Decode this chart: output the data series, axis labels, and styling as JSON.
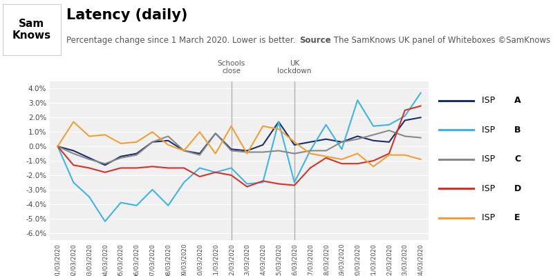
{
  "title": "Latency (daily)",
  "subtitle": "Percentage change since 1 March 2020. Lower is better.",
  "source_label": "Source",
  "source_text": ": The SamKnows UK panel of Whiteboxes ©SamKnows",
  "logo_line1": "Sam",
  "logo_line2": "Knows",
  "dates": [
    "01/03/2020",
    "02/03/2020",
    "03/03/2020",
    "04/03/2020",
    "05/03/2020",
    "06/03/2020",
    "07/03/2020",
    "08/03/2020",
    "09/03/2020",
    "10/03/2020",
    "11/03/2020",
    "12/03/2020",
    "13/03/2020",
    "14/03/2020",
    "15/03/2020",
    "16/03/2020",
    "17/03/2020",
    "18/03/2020",
    "19/03/2020",
    "20/03/2020",
    "21/03/2020",
    "22/03/2020",
    "23/03/2020",
    "24/03/2020"
  ],
  "isp_a": [
    0.0,
    -0.3,
    -0.8,
    -1.3,
    -0.7,
    -0.5,
    0.3,
    0.4,
    -0.3,
    -0.5,
    0.9,
    -0.2,
    -0.3,
    0.1,
    1.7,
    0.1,
    0.3,
    0.5,
    0.3,
    0.7,
    0.4,
    0.3,
    1.8,
    2.0
  ],
  "isp_b": [
    0.0,
    -2.5,
    -3.5,
    -5.2,
    -3.9,
    -4.1,
    -3.0,
    -4.1,
    -2.5,
    -1.5,
    -1.8,
    -1.5,
    -2.6,
    -2.5,
    1.7,
    -2.5,
    -0.3,
    1.5,
    -0.2,
    3.2,
    1.4,
    1.5,
    2.1,
    3.7
  ],
  "isp_c": [
    0.0,
    -0.5,
    -0.9,
    -1.2,
    -0.8,
    -0.6,
    0.3,
    0.7,
    -0.3,
    -0.6,
    0.9,
    -0.3,
    -0.4,
    -0.4,
    -0.3,
    -0.5,
    -0.3,
    -0.3,
    0.3,
    0.5,
    0.8,
    1.1,
    0.7,
    0.6
  ],
  "isp_d": [
    0.0,
    -1.3,
    -1.5,
    -1.8,
    -1.5,
    -1.5,
    -1.4,
    -1.5,
    -1.5,
    -2.1,
    -1.8,
    -2.0,
    -2.8,
    -2.4,
    -2.6,
    -2.7,
    -1.5,
    -0.8,
    -1.2,
    -1.2,
    -1.0,
    -0.5,
    2.5,
    2.8
  ],
  "isp_e": [
    0.0,
    1.7,
    0.7,
    0.8,
    0.2,
    0.3,
    1.0,
    0.1,
    -0.3,
    1.0,
    -0.5,
    1.4,
    -0.5,
    1.4,
    1.2,
    0.3,
    -0.5,
    -0.7,
    -0.9,
    -0.5,
    -1.4,
    -0.6,
    -0.6,
    -0.9
  ],
  "color_a": "#1a2d6b",
  "color_b": "#3ab5e6",
  "color_c": "#888888",
  "color_d": "#d93025",
  "color_e": "#f0a030",
  "vline_schools": 11,
  "vline_lockdown": 15,
  "ylim_min": -6.5,
  "ylim_max": 4.5,
  "yticks": [
    -6.0,
    -5.0,
    -4.0,
    -3.0,
    -2.0,
    -1.0,
    0.0,
    1.0,
    2.0,
    3.0,
    4.0
  ],
  "schools_label": "Schools\nclose",
  "lockdown_label": "UK\nlockdown",
  "legend_letters": [
    "A",
    "B",
    "C",
    "D",
    "E"
  ],
  "bg_color": "#ffffff",
  "plot_bg_color": "#f0f0f0",
  "grid_color": "#ffffff",
  "separator_color": "#cccccc"
}
